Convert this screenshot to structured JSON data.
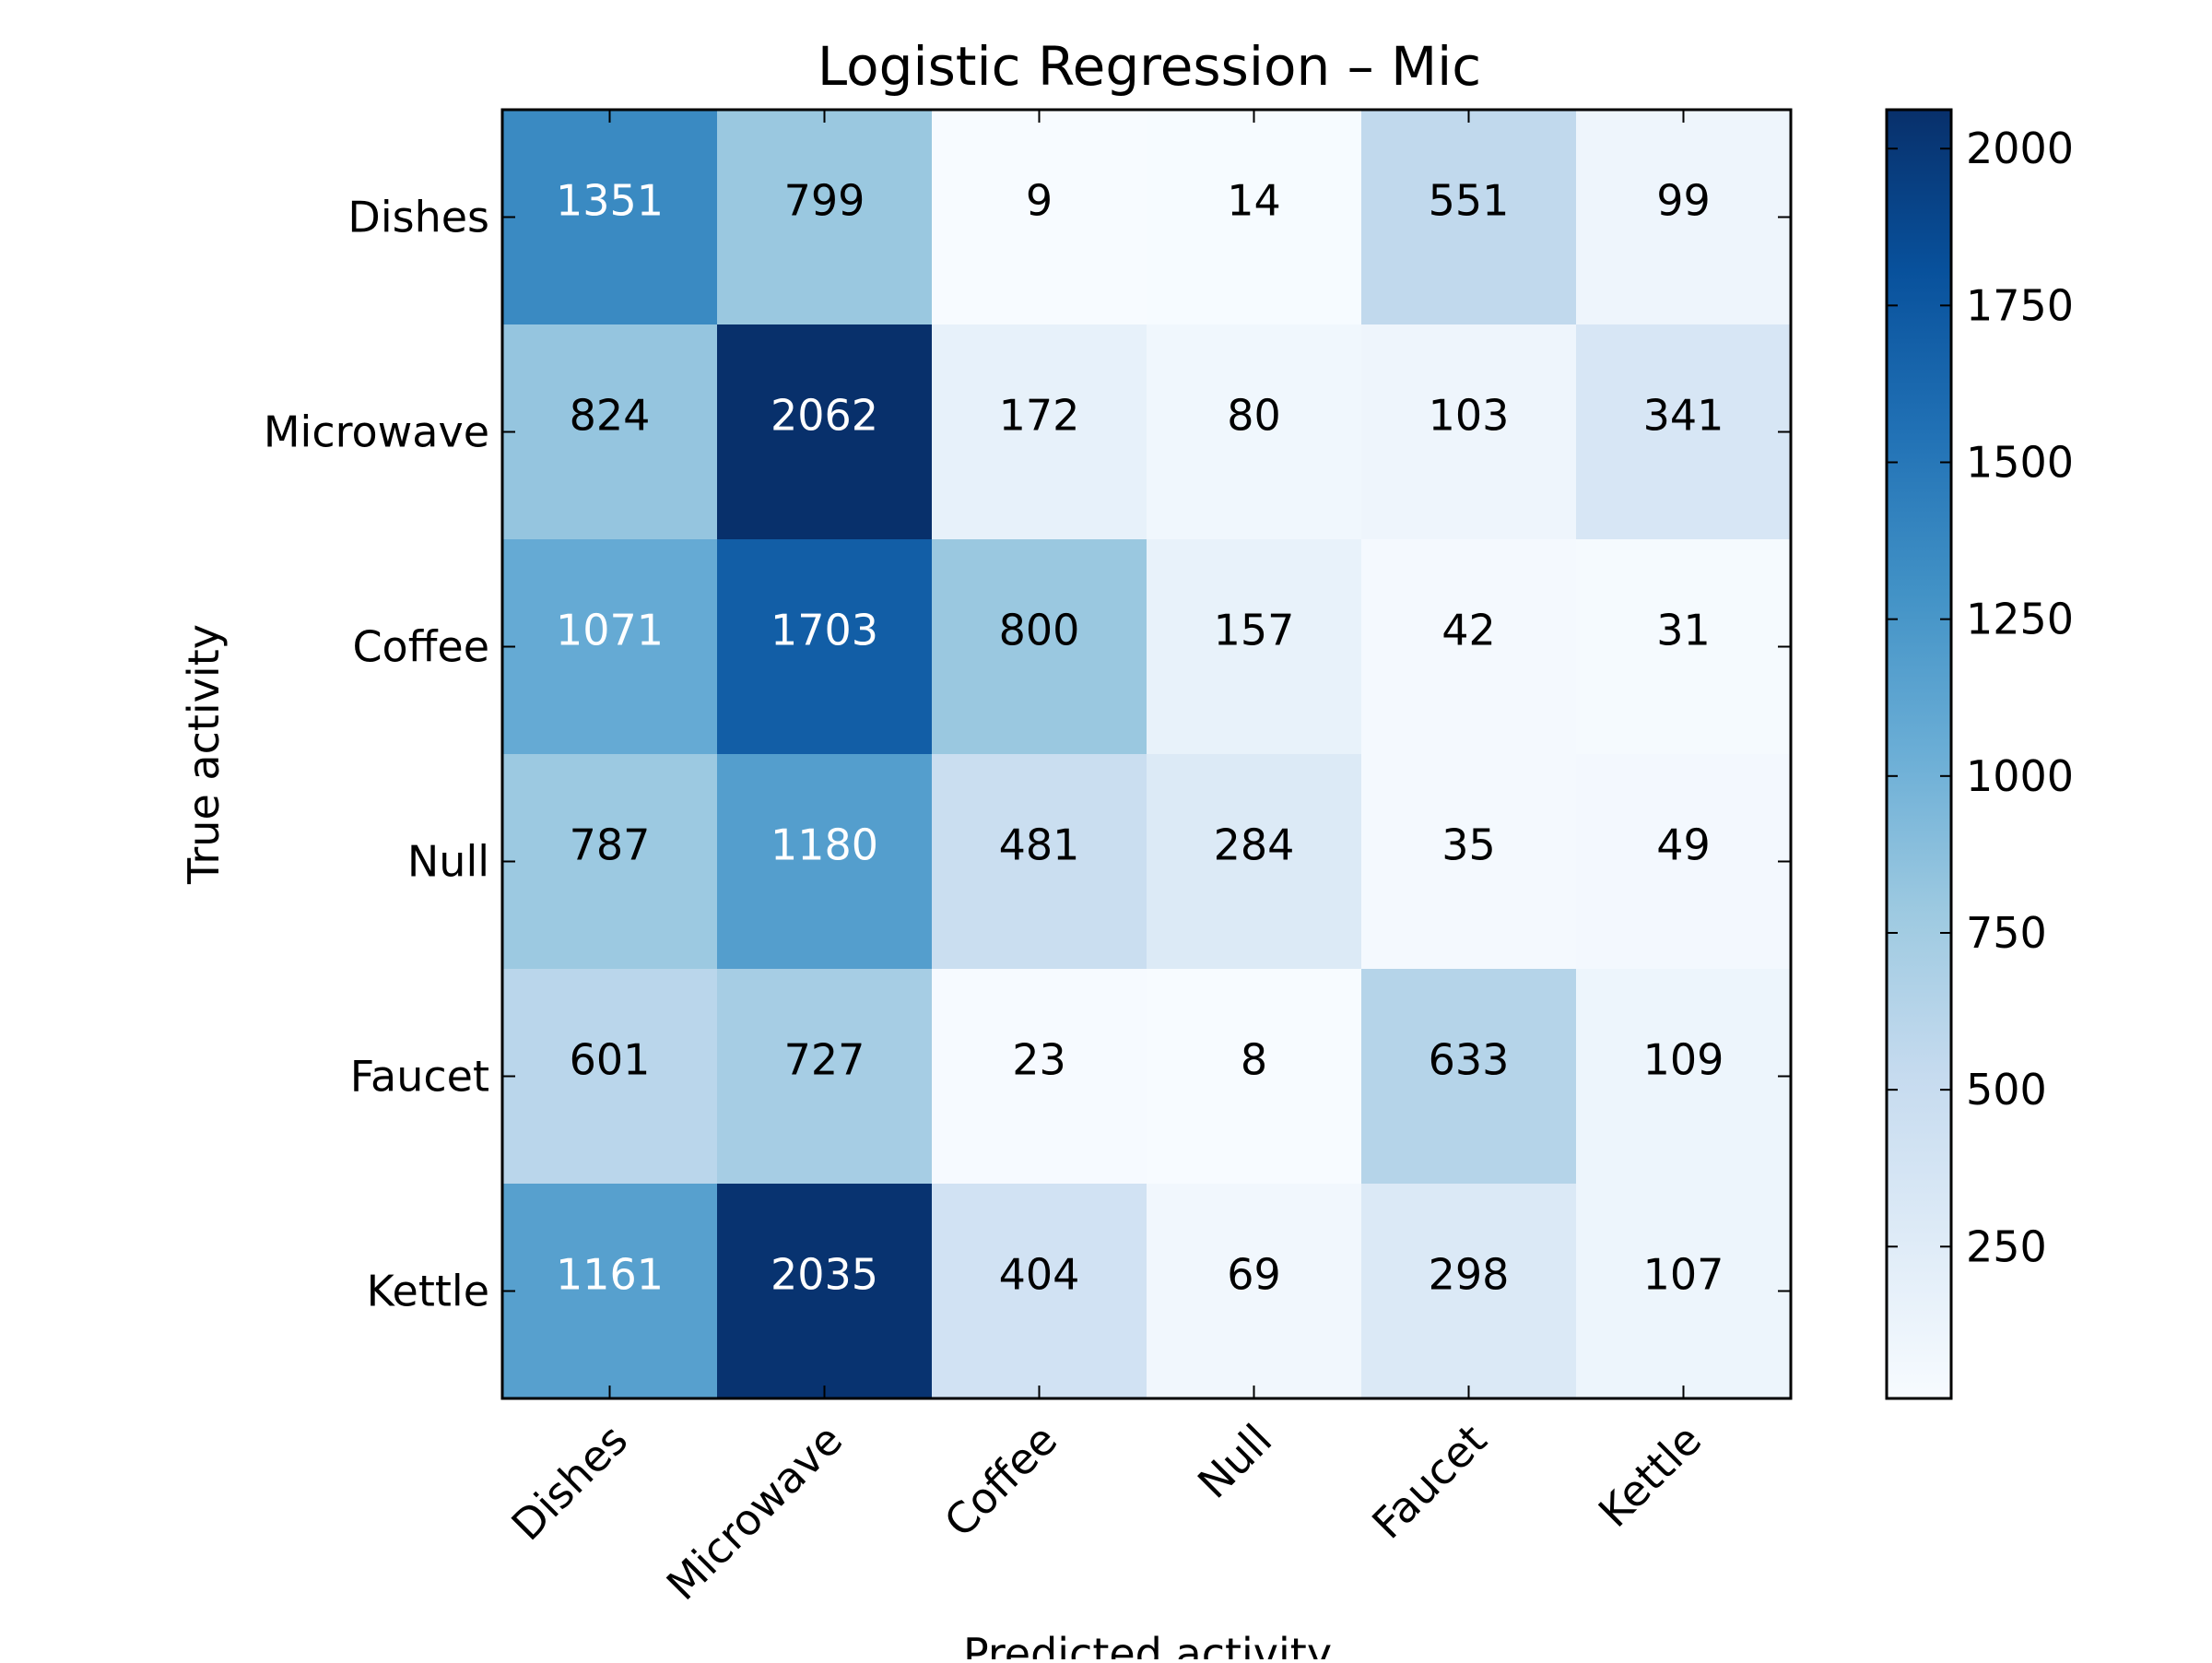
{
  "chart_data": {
    "type": "heatmap",
    "title": "Logistic Regression – Mic",
    "xlabel": "Predicted activity",
    "ylabel": "True activity",
    "x_categories": [
      "Dishes",
      "Microwave",
      "Coffee",
      "Null",
      "Faucet",
      "Kettle"
    ],
    "y_categories": [
      "Dishes",
      "Microwave",
      "Coffee",
      "Null",
      "Faucet",
      "Kettle"
    ],
    "values": [
      [
        1351,
        799,
        9,
        14,
        551,
        99
      ],
      [
        824,
        2062,
        172,
        80,
        103,
        341
      ],
      [
        1071,
        1703,
        800,
        157,
        42,
        31
      ],
      [
        787,
        1180,
        481,
        284,
        35,
        49
      ],
      [
        601,
        727,
        23,
        8,
        633,
        109
      ],
      [
        1161,
        2035,
        404,
        69,
        298,
        107
      ]
    ],
    "colormap": "Blues",
    "color_range": [
      8,
      2062
    ],
    "colorbar_ticks": [
      250,
      500,
      750,
      1000,
      1250,
      1500,
      1750,
      2000
    ],
    "text_color_light": "#ffffff",
    "text_color_dark": "#000000",
    "grid": false
  }
}
